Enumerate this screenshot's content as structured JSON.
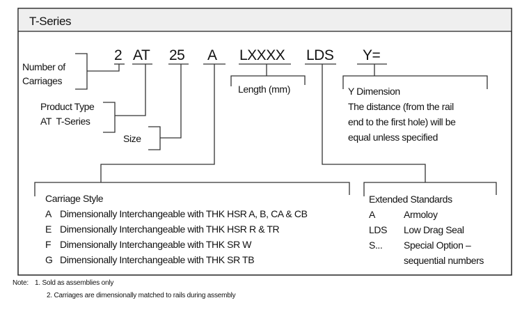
{
  "header": {
    "title": "T-Series"
  },
  "code_parts": [
    "2",
    "AT",
    "25",
    "A",
    "LXXXX",
    "LDS",
    "Y="
  ],
  "labels": {
    "carriages": [
      "Number of",
      "Carriages"
    ],
    "product_type": [
      "Product Type",
      "AT  T-Series"
    ],
    "size": "Size",
    "length": "Length (mm)",
    "y_dimension": [
      "Y Dimension",
      "The distance (from the rail",
      "end to the first hole) will be",
      "equal unless specified"
    ]
  },
  "carriage_style": {
    "title": "Carriage Style",
    "items": [
      {
        "code": "A",
        "desc": "Dimensionally Interchangeable with THK HSR A, B, CA & CB"
      },
      {
        "code": "E",
        "desc": "Dimensionally Interchangeable with THK HSR R & TR"
      },
      {
        "code": "F",
        "desc": "Dimensionally Interchangeable with THK SR W"
      },
      {
        "code": "G",
        "desc": "Dimensionally Interchangeable with THK SR TB"
      }
    ]
  },
  "extended_standards": {
    "title": "Extended Standards",
    "items": [
      {
        "code": "A",
        "desc": "Armoloy"
      },
      {
        "code": "LDS",
        "desc": "Low Drag Seal"
      },
      {
        "code": "S...",
        "desc": "Special Option –"
      },
      {
        "code": "",
        "desc": "sequential numbers"
      }
    ]
  },
  "notes": {
    "label": "Note:",
    "items": [
      "1. Sold as assemblies only",
      "2. Carriages are dimensionally matched to rails during assembly"
    ]
  }
}
